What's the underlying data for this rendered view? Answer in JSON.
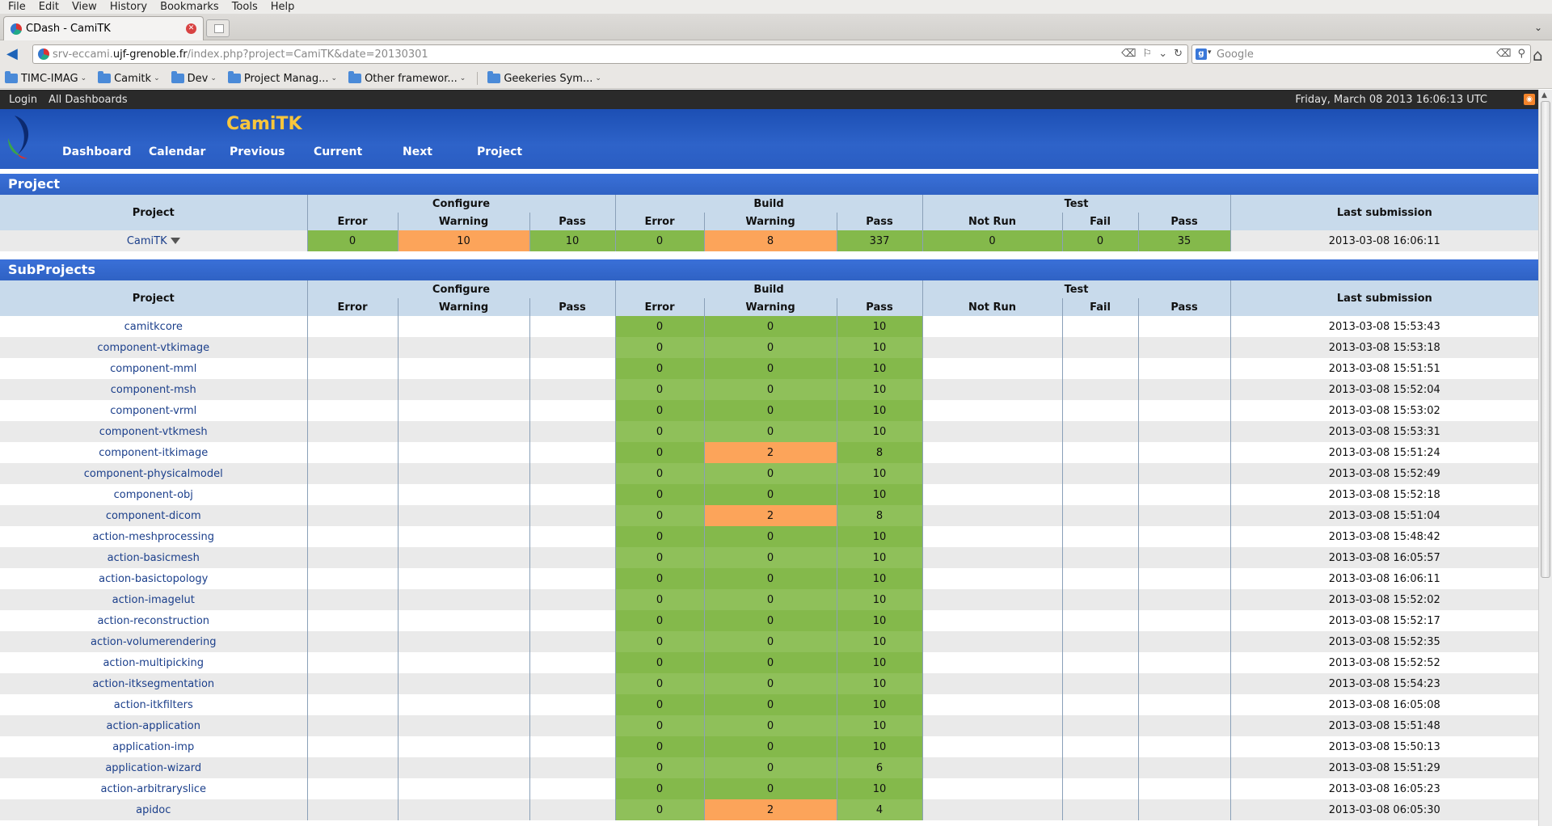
{
  "browser": {
    "menu": [
      "File",
      "Edit",
      "View",
      "History",
      "Bookmarks",
      "Tools",
      "Help"
    ],
    "tab_title": "CDash - CamiTK",
    "url_prefix": "srv-eccami.",
    "url_host": "ujf-grenoble.fr",
    "url_path": "/index.php?project=CamiTK&date=20130301",
    "search_placeholder": "Google",
    "bookmarks": [
      "TIMC-IMAG",
      "Camitk",
      "Dev",
      "Project Manag...",
      "Other framewor...",
      "Geekeries Sym..."
    ]
  },
  "topbar": {
    "login": "Login",
    "all_dashboards": "All Dashboards",
    "datetime": "Friday, March 08 2013 16:06:13 UTC"
  },
  "header": {
    "project_name": "CamiTK",
    "nav": [
      "Dashboard",
      "Calendar",
      "Previous",
      "Current",
      "Next",
      "Project"
    ]
  },
  "project_section": {
    "title": "Project",
    "headers": {
      "project": "Project",
      "configure": "Configure",
      "build": "Build",
      "test": "Test",
      "last_submission": "Last submission",
      "error": "Error",
      "warning": "Warning",
      "pass": "Pass",
      "not_run": "Not Run",
      "fail": "Fail"
    },
    "row": {
      "name": "CamiTK",
      "configure_error": "0",
      "configure_warning": "10",
      "configure_pass": "10",
      "build_error": "0",
      "build_warning": "8",
      "build_pass": "337",
      "test_notrun": "0",
      "test_fail": "0",
      "test_pass": "35",
      "last_submission": "2013-03-08 16:06:11"
    }
  },
  "subprojects_section": {
    "title": "SubProjects",
    "rows": [
      {
        "name": "camitkcore",
        "build_error": "0",
        "build_warning": "0",
        "build_pass": "10",
        "last": "2013-03-08 15:53:43"
      },
      {
        "name": "component-vtkimage",
        "build_error": "0",
        "build_warning": "0",
        "build_pass": "10",
        "last": "2013-03-08 15:53:18"
      },
      {
        "name": "component-mml",
        "build_error": "0",
        "build_warning": "0",
        "build_pass": "10",
        "last": "2013-03-08 15:51:51"
      },
      {
        "name": "component-msh",
        "build_error": "0",
        "build_warning": "0",
        "build_pass": "10",
        "last": "2013-03-08 15:52:04"
      },
      {
        "name": "component-vrml",
        "build_error": "0",
        "build_warning": "0",
        "build_pass": "10",
        "last": "2013-03-08 15:53:02"
      },
      {
        "name": "component-vtkmesh",
        "build_error": "0",
        "build_warning": "0",
        "build_pass": "10",
        "last": "2013-03-08 15:53:31"
      },
      {
        "name": "component-itkimage",
        "build_error": "0",
        "build_warning": "2",
        "build_pass": "8",
        "last": "2013-03-08 15:51:24"
      },
      {
        "name": "component-physicalmodel",
        "build_error": "0",
        "build_warning": "0",
        "build_pass": "10",
        "last": "2013-03-08 15:52:49"
      },
      {
        "name": "component-obj",
        "build_error": "0",
        "build_warning": "0",
        "build_pass": "10",
        "last": "2013-03-08 15:52:18"
      },
      {
        "name": "component-dicom",
        "build_error": "0",
        "build_warning": "2",
        "build_pass": "8",
        "last": "2013-03-08 15:51:04"
      },
      {
        "name": "action-meshprocessing",
        "build_error": "0",
        "build_warning": "0",
        "build_pass": "10",
        "last": "2013-03-08 15:48:42"
      },
      {
        "name": "action-basicmesh",
        "build_error": "0",
        "build_warning": "0",
        "build_pass": "10",
        "last": "2013-03-08 16:05:57"
      },
      {
        "name": "action-basictopology",
        "build_error": "0",
        "build_warning": "0",
        "build_pass": "10",
        "last": "2013-03-08 16:06:11"
      },
      {
        "name": "action-imagelut",
        "build_error": "0",
        "build_warning": "0",
        "build_pass": "10",
        "last": "2013-03-08 15:52:02"
      },
      {
        "name": "action-reconstruction",
        "build_error": "0",
        "build_warning": "0",
        "build_pass": "10",
        "last": "2013-03-08 15:52:17"
      },
      {
        "name": "action-volumerendering",
        "build_error": "0",
        "build_warning": "0",
        "build_pass": "10",
        "last": "2013-03-08 15:52:35"
      },
      {
        "name": "action-multipicking",
        "build_error": "0",
        "build_warning": "0",
        "build_pass": "10",
        "last": "2013-03-08 15:52:52"
      },
      {
        "name": "action-itksegmentation",
        "build_error": "0",
        "build_warning": "0",
        "build_pass": "10",
        "last": "2013-03-08 15:54:23"
      },
      {
        "name": "action-itkfilters",
        "build_error": "0",
        "build_warning": "0",
        "build_pass": "10",
        "last": "2013-03-08 16:05:08"
      },
      {
        "name": "action-application",
        "build_error": "0",
        "build_warning": "0",
        "build_pass": "10",
        "last": "2013-03-08 15:51:48"
      },
      {
        "name": "application-imp",
        "build_error": "0",
        "build_warning": "0",
        "build_pass": "10",
        "last": "2013-03-08 15:50:13"
      },
      {
        "name": "application-wizard",
        "build_error": "0",
        "build_warning": "0",
        "build_pass": "6",
        "last": "2013-03-08 15:51:29"
      },
      {
        "name": "action-arbitraryslice",
        "build_error": "0",
        "build_warning": "0",
        "build_pass": "10",
        "last": "2013-03-08 16:05:23"
      },
      {
        "name": "apidoc",
        "build_error": "0",
        "build_warning": "2",
        "build_pass": "4",
        "last": "2013-03-08 06:05:30"
      }
    ]
  },
  "colors": {
    "pass_green": "#84b94b",
    "pass_green_alt": "#8fc05a",
    "warning_orange": "#fca45a",
    "header_blue": "#2e63c9",
    "project_title_yellow": "#f9c63c",
    "table_header": "#c8daeb"
  },
  "icons": [
    "back-arrow-icon",
    "reload-icon",
    "home-icon",
    "folder-icon",
    "rss-icon",
    "filter-icon",
    "close-icon",
    "search-icon"
  ]
}
